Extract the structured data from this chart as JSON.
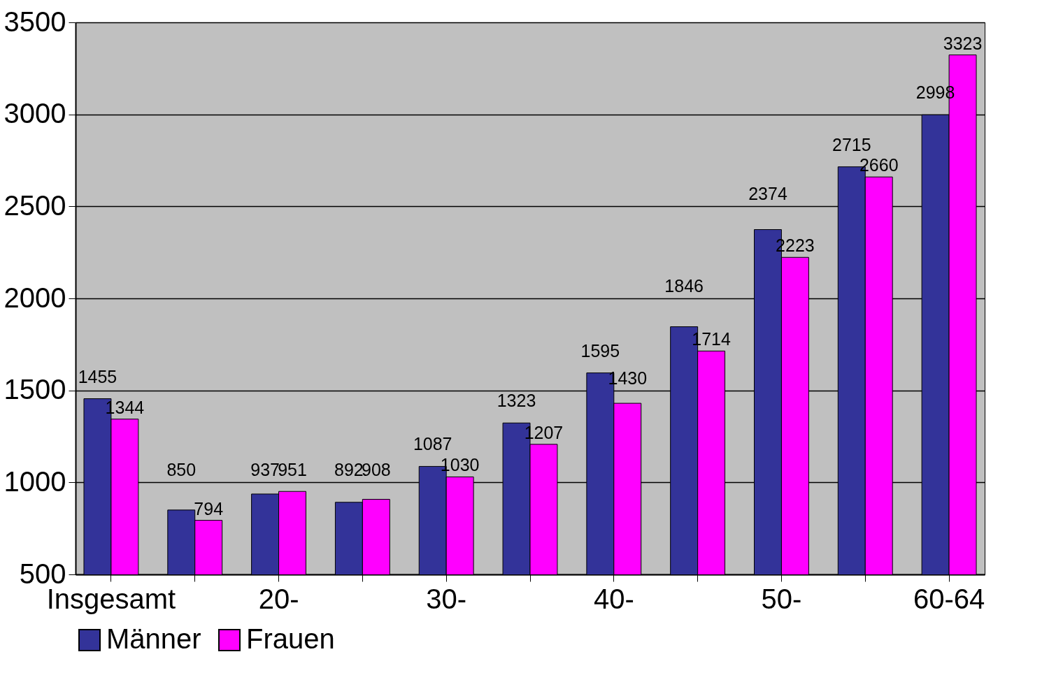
{
  "chart_data": {
    "type": "bar",
    "categories": [
      "Insgesamt",
      null,
      "20-",
      null,
      "30-",
      null,
      "40-",
      null,
      "50-",
      null,
      "60-64"
    ],
    "series": [
      {
        "name": "Männer",
        "color": "#333399",
        "values": [
          1455,
          850,
          937,
          892,
          1087,
          1323,
          1595,
          1846,
          2374,
          2715,
          2998
        ]
      },
      {
        "name": "Frauen",
        "color": "#ff00ff",
        "values": [
          1344,
          794,
          951,
          908,
          1030,
          1207,
          1430,
          1714,
          2223,
          2660,
          3323
        ]
      }
    ],
    "ylim": [
      500,
      3500
    ],
    "yticks": [
      500,
      1000,
      1500,
      2000,
      2500,
      3000,
      3500
    ],
    "grid": "y",
    "legend": "bottom",
    "data_labels": true
  }
}
